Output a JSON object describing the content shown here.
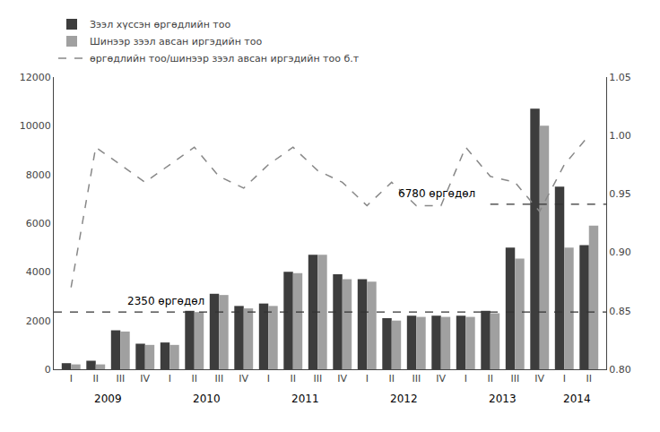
{
  "chart_data": {
    "type": "bar",
    "categories": [
      "I",
      "II",
      "III",
      "IV",
      "I",
      "II",
      "III",
      "IV",
      "I",
      "II",
      "III",
      "IV",
      "I",
      "II",
      "III",
      "IV",
      "I",
      "II",
      "III",
      "IV",
      "I",
      "II"
    ],
    "groups": [
      {
        "label": "2009",
        "size": 4
      },
      {
        "label": "2010",
        "size": 4
      },
      {
        "label": "2011",
        "size": 4
      },
      {
        "label": "2012",
        "size": 4
      },
      {
        "label": "2013",
        "size": 4
      },
      {
        "label": "2014",
        "size": 2
      }
    ],
    "series": [
      {
        "name": "Зээл хүссэн өргөдлийн тоо",
        "color": "#3d3d3d",
        "values": [
          250,
          350,
          1600,
          1050,
          1100,
          2400,
          3100,
          2600,
          2700,
          4000,
          4700,
          3900,
          3700,
          2100,
          2200,
          2200,
          2200,
          2400,
          5000,
          10700,
          7500,
          5100
        ]
      },
      {
        "name": "Шинээр зээл авсан иргэдийн тоо",
        "color": "#a0a0a0",
        "values": [
          200,
          200,
          1550,
          1000,
          1000,
          2350,
          3050,
          2500,
          2600,
          3950,
          4700,
          3700,
          3600,
          2000,
          2150,
          2150,
          2150,
          2300,
          4550,
          10000,
          5000,
          5900
        ]
      },
      {
        "name": "өргөдлийн тоо/шинээр зээл авсан иргэдийн тоо б.т",
        "type": "line",
        "line_style": "dashed",
        "color": "#888888",
        "axis": "y2",
        "values": [
          0.87,
          0.99,
          0.975,
          0.96,
          0.975,
          0.99,
          0.965,
          0.955,
          0.975,
          0.99,
          0.97,
          0.96,
          0.94,
          0.96,
          0.94,
          0.94,
          0.99,
          0.965,
          0.96,
          0.935,
          0.975,
          1.0
        ]
      }
    ],
    "ylim": [
      0,
      12000
    ],
    "yticks": [
      0,
      2000,
      4000,
      6000,
      8000,
      10000,
      12000
    ],
    "y2lim": [
      0.8,
      1.05
    ],
    "y2ticks": [
      {
        "value": 0.8,
        "label": "0.80"
      },
      0.85,
      {
        "value": 0.9,
        "label": "0.90"
      },
      0.95,
      {
        "value": 1.0,
        "label": "1.00"
      },
      1.05
    ],
    "reference_lines": [
      {
        "value": 2350,
        "label": "2350 өргөдөл",
        "color": "#333333",
        "line_style": "dashed"
      },
      {
        "value": 6780,
        "label": "6780 өргөдөл",
        "color": "#333333",
        "line_style": "dashed",
        "start_index": 17
      }
    ],
    "grid": false,
    "legend": "upper left"
  }
}
